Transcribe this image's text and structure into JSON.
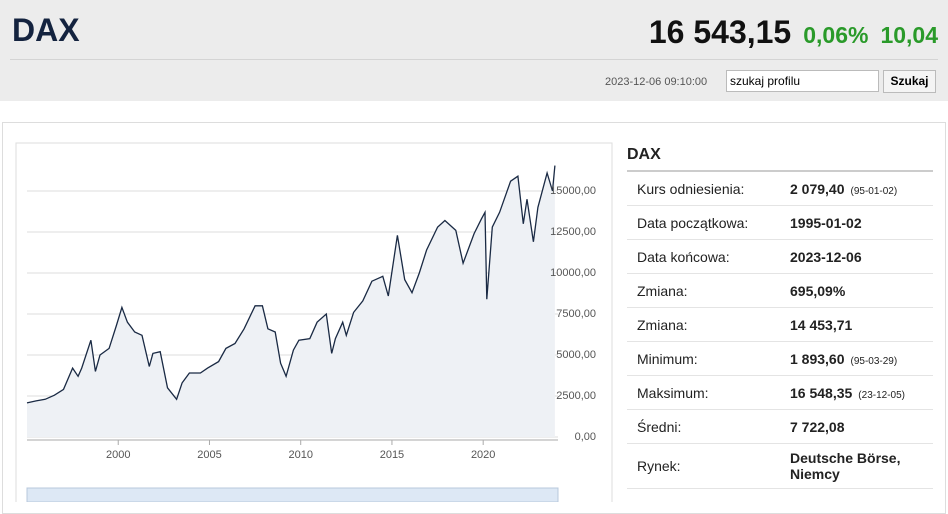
{
  "header": {
    "title": "DAX",
    "price": "16 543,15",
    "change_pct": "0,06%",
    "change": "10,04",
    "timestamp": "2023-12-06 09:10:00",
    "search_value": "szukaj profilu",
    "search_button": "Szukaj"
  },
  "chart_data": {
    "type": "line",
    "color": "#1a2a44",
    "fill": "#eef1f5",
    "grid": true,
    "x": [
      1995.0,
      1995.5,
      1996.0,
      1996.5,
      1997.0,
      1997.5,
      1997.8,
      1998.0,
      1998.5,
      1998.75,
      1999.0,
      1999.5,
      1999.9,
      2000.2,
      2000.5,
      2000.9,
      2001.3,
      2001.7,
      2001.9,
      2002.3,
      2002.7,
      2003.2,
      2003.5,
      2003.9,
      2004.5,
      2004.9,
      2005.5,
      2005.9,
      2006.4,
      2006.9,
      2007.5,
      2007.9,
      2008.2,
      2008.6,
      2008.9,
      2009.2,
      2009.6,
      2009.9,
      2010.5,
      2010.9,
      2011.4,
      2011.7,
      2011.9,
      2012.3,
      2012.5,
      2012.9,
      2013.4,
      2013.9,
      2014.5,
      2014.8,
      2015.3,
      2015.7,
      2016.1,
      2016.5,
      2016.9,
      2017.5,
      2017.9,
      2018.5,
      2018.9,
      2019.5,
      2019.9,
      2020.1,
      2020.2,
      2020.5,
      2020.9,
      2021.5,
      2021.9,
      2022.2,
      2022.4,
      2022.75,
      2023.0,
      2023.5,
      2023.8,
      2023.93
    ],
    "values": [
      2079,
      2200,
      2300,
      2550,
      2900,
      4200,
      3700,
      4200,
      5900,
      4000,
      5000,
      5400,
      6800,
      7900,
      7000,
      6400,
      6200,
      4300,
      5100,
      5200,
      3000,
      2300,
      3300,
      3900,
      3900,
      4200,
      4600,
      5400,
      5700,
      6600,
      8000,
      8000,
      6600,
      6400,
      4500,
      3700,
      5300,
      5900,
      6000,
      7000,
      7500,
      5100,
      6000,
      7000,
      6200,
      7600,
      8300,
      9500,
      9800,
      8600,
      12300,
      9600,
      8800,
      10000,
      11400,
      12800,
      13200,
      12600,
      10600,
      12400,
      13300,
      13700,
      8400,
      12800,
      13700,
      15600,
      15900,
      13000,
      14500,
      11900,
      14000,
      16100,
      15000,
      16548
    ],
    "xlim": [
      1995.0,
      2024.1
    ],
    "xticks": [
      2000,
      2005,
      2010,
      2015,
      2020
    ],
    "ylim": [
      0,
      17500
    ],
    "yticks": [
      {
        "value": 0,
        "label": "0,00"
      },
      {
        "value": 2500,
        "label": "2500,00"
      },
      {
        "value": 5000,
        "label": "5000,00"
      },
      {
        "value": 7500,
        "label": "7500,00"
      },
      {
        "value": 10000,
        "label": "10000,00"
      },
      {
        "value": 12500,
        "label": "12500,00"
      },
      {
        "value": 15000,
        "label": "15000,00"
      }
    ]
  },
  "table": {
    "title": "DAX",
    "rows": [
      {
        "label": "Kurs odniesienia:",
        "value": "2 079,40",
        "note": "(95-01-02)"
      },
      {
        "label": "Data początkowa:",
        "value": "1995-01-02"
      },
      {
        "label": "Data końcowa:",
        "value": "2023-12-06"
      },
      {
        "label": "Zmiana:",
        "value": "695,09%"
      },
      {
        "label": "Zmiana:",
        "value": "14 453,71"
      },
      {
        "label": "Minimum:",
        "value": "1 893,60",
        "note": "(95-03-29)"
      },
      {
        "label": "Maksimum:",
        "value": "16 548,35",
        "note": "(23-12-05)"
      },
      {
        "label": "Średni:",
        "value": "7 722,08"
      },
      {
        "label": "Rynek:",
        "value": "Deutsche Börse, Niemcy"
      }
    ]
  }
}
